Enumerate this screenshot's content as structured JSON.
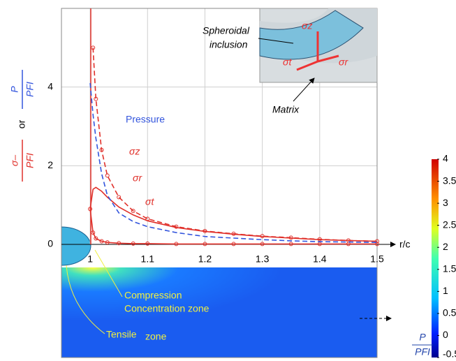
{
  "chart_data": {
    "type": "line",
    "x_label": "r/c",
    "y_label_parts": [
      "σ–",
      "PFI",
      "or",
      "P",
      "PFI"
    ],
    "x": [
      1.0,
      1.005,
      1.01,
      1.02,
      1.03,
      1.05,
      1.075,
      1.1,
      1.15,
      1.2,
      1.25,
      1.3,
      1.35,
      1.4,
      1.45,
      1.5
    ],
    "series": [
      {
        "name": "σz",
        "color": "#e0302a",
        "dash": true,
        "markers": true,
        "values": [
          null,
          5.0,
          3.7,
          2.4,
          1.75,
          1.2,
          0.85,
          0.65,
          0.45,
          0.34,
          0.27,
          0.21,
          0.17,
          0.13,
          0.1,
          0.08
        ]
      },
      {
        "name": "σr",
        "color": "#e0302a",
        "dash": false,
        "markers": false,
        "values": [
          0.9,
          1.4,
          1.45,
          1.35,
          1.2,
          0.95,
          0.75,
          0.6,
          0.43,
          0.33,
          0.26,
          0.2,
          0.16,
          0.12,
          0.1,
          0.08
        ]
      },
      {
        "name": "σt",
        "color": "#e0302a",
        "dash": false,
        "markers": true,
        "values": [
          0.9,
          0.3,
          0.15,
          0.08,
          0.05,
          0.03,
          0.02,
          0.02,
          0.01,
          0.01,
          0.01,
          0.01,
          0.01,
          0.01,
          0.01,
          0.01
        ]
      },
      {
        "name": "Pressure",
        "color": "#3355dd",
        "dash": true,
        "markers": false,
        "values": [
          4.1,
          3.3,
          2.7,
          1.8,
          1.25,
          0.8,
          0.58,
          0.45,
          0.3,
          0.2,
          0.16,
          0.12,
          0.09,
          0.07,
          0.06,
          0.05
        ]
      }
    ],
    "xlim": [
      0.95,
      1.5
    ],
    "ylim": [
      0,
      6
    ],
    "xticks": [
      1,
      1.1,
      1.2,
      1.3,
      1.4,
      1.5
    ],
    "yticks": [
      0,
      2,
      4
    ],
    "grid": true,
    "annotations": {
      "inclusion": [
        "Spheroidal",
        "inclusion"
      ],
      "matrix": "Matrix",
      "inset_sz": "σz",
      "inset_st": "σt",
      "inset_sr": "σr",
      "compression": [
        "Compression",
        "Concentration zone"
      ],
      "tensile": "Tensile",
      "tensile_small": "zone"
    },
    "colorbar": {
      "lim": [
        -0.5,
        4
      ],
      "ticks": [
        4,
        3.5,
        3,
        2.5,
        2,
        1.5,
        1,
        0.5,
        0,
        -0.5
      ],
      "label_num": "P",
      "label_den": "PFI"
    }
  }
}
